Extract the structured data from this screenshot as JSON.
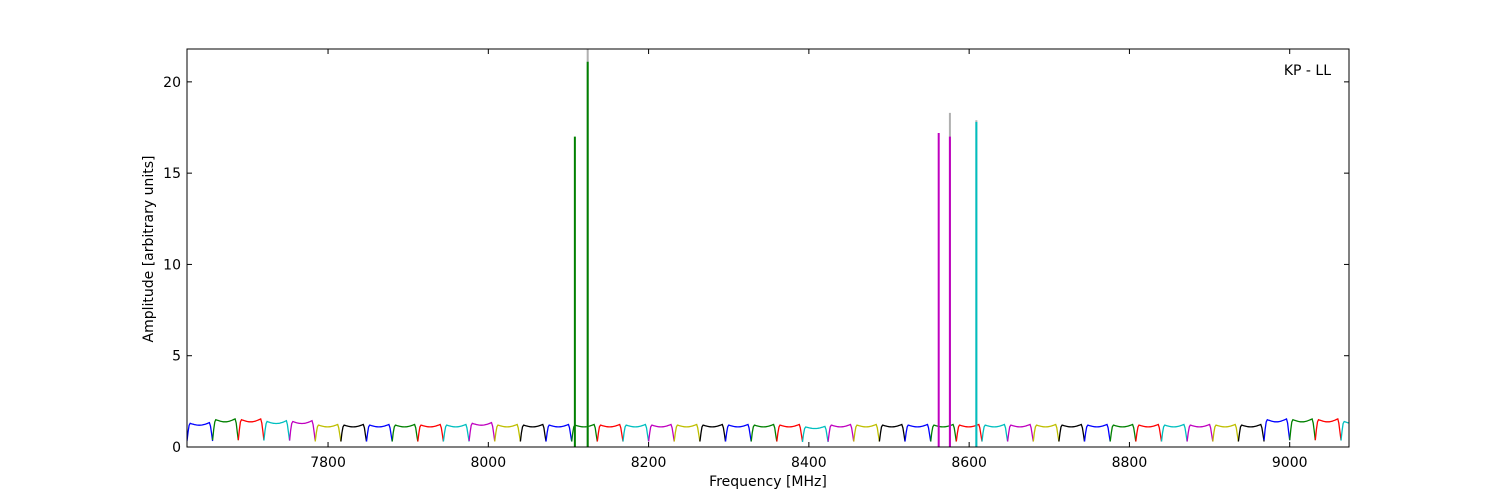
{
  "chart_data": {
    "type": "line",
    "title": "",
    "annotation": "KP - LL",
    "xlabel": "Frequency [MHz]",
    "ylabel": "Amplitude [arbitrary units]",
    "xlim": [
      7624,
      9074
    ],
    "ylim": [
      0,
      21.8
    ],
    "x_ticks": [
      7800,
      8000,
      8200,
      8400,
      8600,
      8800,
      9000
    ],
    "y_ticks": [
      0,
      5,
      10,
      15,
      20
    ],
    "grid": false,
    "legend": "none",
    "channel_width_mhz": 32,
    "channel_colors": [
      "#0000ff",
      "#008000",
      "#ff0000",
      "#00bfbf",
      "#bf00bf",
      "#bfbf00",
      "#000000"
    ],
    "channel_peaks": [
      1.3,
      1.5,
      1.5,
      1.4,
      1.4,
      1.2,
      1.2,
      1.2,
      1.2,
      1.2,
      1.2,
      1.3,
      1.2,
      1.2,
      1.2,
      1.2,
      1.2,
      1.2,
      1.2,
      1.2,
      1.2,
      1.2,
      1.2,
      1.2,
      1.1,
      1.2,
      1.2,
      1.2,
      1.2,
      1.2,
      1.2,
      1.2,
      1.2,
      1.2,
      1.2,
      1.2,
      1.2,
      1.2,
      1.2,
      1.2,
      1.2,
      1.2,
      1.5,
      1.5,
      1.5,
      1.4
    ],
    "spikes": [
      {
        "x": 8108,
        "y": 17.0,
        "color": "#008000"
      },
      {
        "x": 8124,
        "y": 21.1,
        "color": "#008000"
      },
      {
        "x": 8562,
        "y": 17.2,
        "color": "#bf00bf"
      },
      {
        "x": 8576,
        "y": 17.0,
        "color": "#bf00bf"
      },
      {
        "x": 8609,
        "y": 17.8,
        "color": "#00bfbf"
      }
    ],
    "gray_spikes": [
      {
        "x": 8124,
        "y": 21.8
      },
      {
        "x": 8576,
        "y": 18.3
      },
      {
        "x": 8609,
        "y": 17.9
      }
    ]
  }
}
